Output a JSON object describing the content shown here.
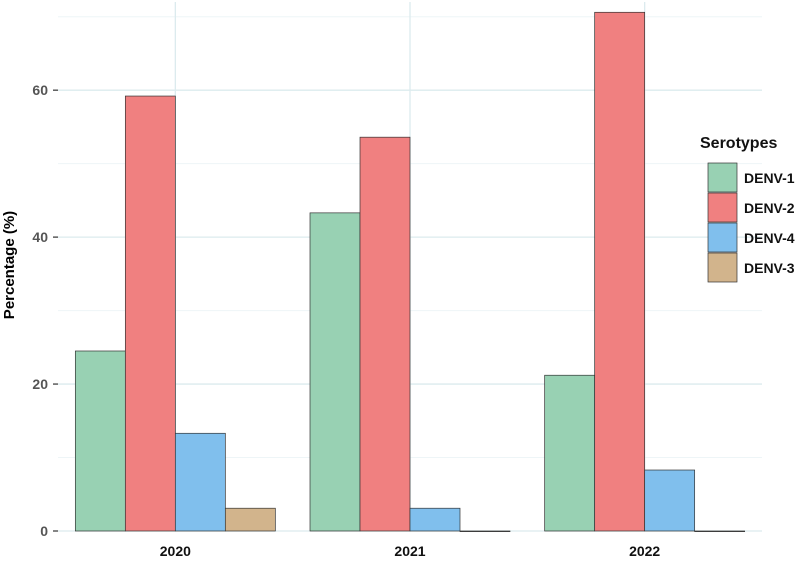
{
  "chart_data": {
    "type": "bar",
    "title": "",
    "xlabel": "",
    "ylabel": "Percentage (%)",
    "ylim": [
      0,
      72
    ],
    "yticks": [
      0,
      20,
      40,
      60
    ],
    "grid": true,
    "legend_title": "Serotypes",
    "legend_position": "right",
    "categories": [
      "2020",
      "2021",
      "2022"
    ],
    "series": [
      {
        "name": "DENV-1",
        "color": "#98d1b3",
        "values": [
          24.5,
          43.3,
          21.2
        ]
      },
      {
        "name": "DENV-2",
        "color": "#f08080",
        "values": [
          59.2,
          53.6,
          70.6
        ]
      },
      {
        "name": "DENV-4",
        "color": "#80bfed",
        "values": [
          13.3,
          3.1,
          8.3
        ]
      },
      {
        "name": "DENV-3",
        "color": "#d2b48c",
        "values": [
          3.1,
          0,
          0
        ]
      }
    ]
  }
}
